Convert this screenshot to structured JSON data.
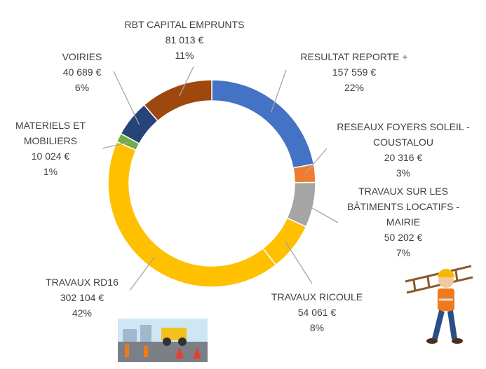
{
  "chart_data": {
    "type": "donut",
    "categories": [
      "RESULTAT REPORTE +",
      "RESEAUX FOYERS SOLEIL - COUSTALOU",
      "TRAVAUX SUR LES BÂTIMENTS LOCATIFS - MAIRIE",
      "TRAVAUX RICOULE",
      "TRAVAUX RD16",
      "MATERIELS ET MOBILIERS",
      "VOIRIES",
      "RBT CAPITAL EMPRUNTS"
    ],
    "values": [
      157559,
      20316,
      50202,
      54061,
      302104,
      10024,
      40689,
      81013
    ],
    "value_labels": [
      "157 559 €",
      "20 316 €",
      "50 202 €",
      "54 061 €",
      "302 104 €",
      "10 024 €",
      "40 689 €",
      "81 013 €"
    ],
    "percent_labels": [
      "22%",
      "3%",
      "7%",
      "8%",
      "42%",
      "1%",
      "6%",
      "11%"
    ],
    "colors": [
      "#4472c4",
      "#ed7d31",
      "#a5a5a5",
      "#ffc000",
      "#ffc000",
      "#70ad47",
      "#264478",
      "#9e480e"
    ]
  }
}
